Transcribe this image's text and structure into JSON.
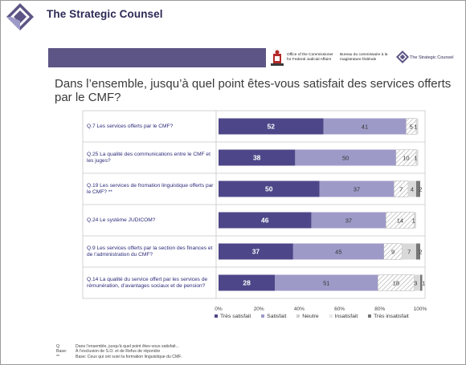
{
  "header": {
    "company_name": "The Strategic Counsel",
    "gov_en": "Office of the Commissioner for Federal Judicial Affairs",
    "gov_fr": "Bureau du commissaire à la magistrature fédérale",
    "small_logo_text": "The Strategic Counsel"
  },
  "colors": {
    "tres_satisfait": "#4d4789",
    "satisfait": "#9e9ac8",
    "neutre": "#ffffff",
    "insatisfait": "#d9d9d9",
    "tres_insatisfait": "#777777",
    "banner": "#5c5585"
  },
  "chart_data": {
    "type": "bar",
    "orientation": "horizontal-stacked",
    "title": "Dans l’ensemble, jusqu’à quel point êtes-vous satisfait des services offerts par le CMF?",
    "categories": [
      "Q.7 Les services offerts par le CMF?",
      "Q.25 La qualité des communications entre le CMF et les juges?",
      "Q.19 Les services de fromation linguistique offerts par le CMF? **",
      "Q.24 Le système JUDICOM?",
      "Q.9 Les services offerts par la section des finances et de l’administration du CMF?",
      "Q.14 La qualité du service offert par les services de rémunération, d’avantages sociaux et de pension?"
    ],
    "series": [
      {
        "name": "Très satisfait",
        "values": [
          52,
          38,
          50,
          46,
          37,
          28
        ]
      },
      {
        "name": "Satisfait",
        "values": [
          41,
          50,
          37,
          37,
          45,
          51
        ]
      },
      {
        "name": "Neutre",
        "values": [
          5,
          10,
          7,
          14,
          9,
          18
        ]
      },
      {
        "name": "Insatisfait",
        "values": [
          1,
          1,
          4,
          1,
          7,
          3
        ]
      },
      {
        "name": "Très insatisfait",
        "values": [
          0,
          0,
          2,
          0,
          2,
          1
        ]
      }
    ],
    "value_labels": [
      [
        "52",
        "41",
        "5",
        "1",
        ""
      ],
      [
        "38",
        "50",
        "10",
        "1",
        ""
      ],
      [
        "50",
        "37",
        "7",
        "4",
        "2"
      ],
      [
        "46",
        "37",
        "14",
        "1",
        ""
      ],
      [
        "37",
        "45",
        "9",
        "7",
        "2"
      ],
      [
        "28",
        "51",
        "18",
        "3",
        "1"
      ]
    ],
    "x_ticks": [
      "0%",
      "20%",
      "40%",
      "60%",
      "80%",
      "100%"
    ],
    "xlim": [
      0,
      100
    ],
    "legend_position": "bottom",
    "grid": false
  },
  "notes": [
    {
      "key": "Q",
      "text": "Dans l’ensemble, jusqu’à quel point êtes-vous satisfait..."
    },
    {
      "key": "Base:",
      "text": "À l’exclusion de S.O. et de Refus de répondre"
    },
    {
      "key": "**",
      "text": "Base:  Ceux qui ont suivi la formation linguistique du CMF."
    }
  ]
}
